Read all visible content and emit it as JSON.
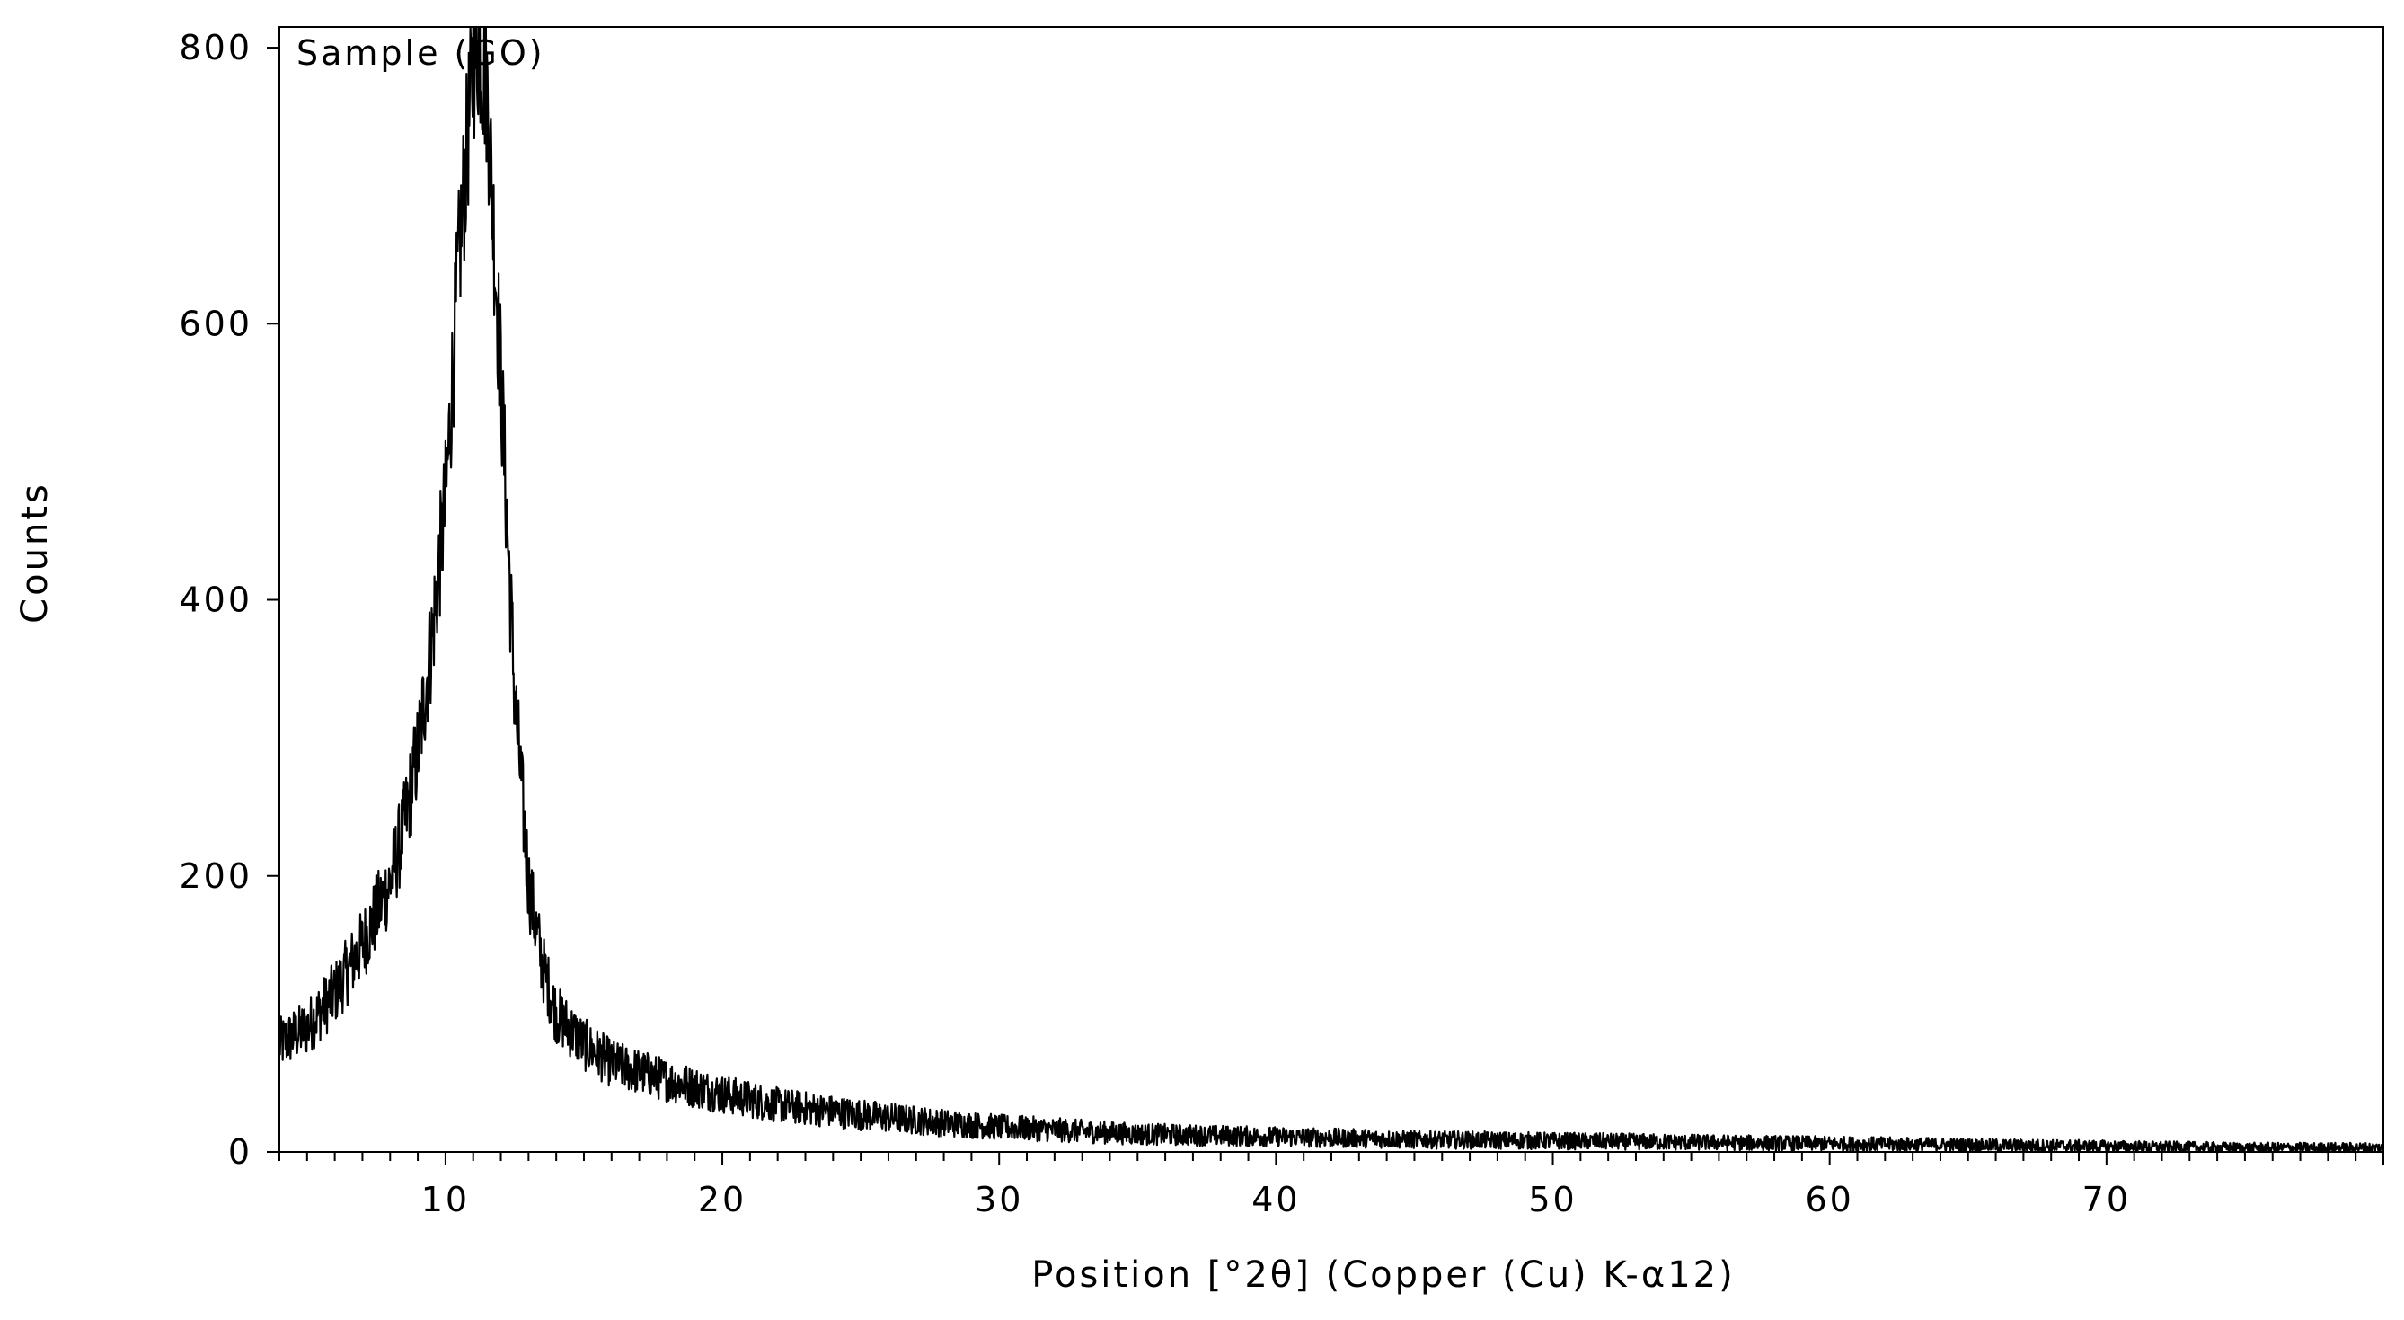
{
  "chart_data": {
    "type": "line",
    "annotation": "Sample (GO)",
    "xlabel": "Position [°2θ] (Copper (Cu) K-α12)",
    "ylabel": "Counts",
    "xlim": [
      4,
      80
    ],
    "ylim": [
      0,
      815
    ],
    "x_ticks": [
      10,
      20,
      30,
      40,
      50,
      60,
      70
    ],
    "y_ticks": [
      0,
      200,
      400,
      600,
      800
    ],
    "grid": false,
    "legend": "none",
    "line_color": "#000000",
    "series": [
      {
        "x": [
          4,
          5,
          6,
          7,
          8,
          8.5,
          9,
          9.5,
          10,
          10.5,
          11,
          11.2,
          11.5,
          12,
          12.5,
          13,
          13.5,
          14,
          15,
          16,
          18,
          20,
          22,
          25,
          28,
          30,
          35,
          40,
          45,
          50,
          55,
          60,
          65,
          70,
          75,
          80
        ],
        "values": [
          78,
          90,
          115,
          150,
          195,
          235,
          290,
          370,
          470,
          650,
          790,
          805,
          770,
          560,
          330,
          195,
          135,
          100,
          78,
          64,
          52,
          42,
          34,
          27,
          21,
          18,
          13,
          11,
          9,
          8,
          7,
          6,
          5,
          4,
          3,
          3
        ]
      }
    ]
  }
}
